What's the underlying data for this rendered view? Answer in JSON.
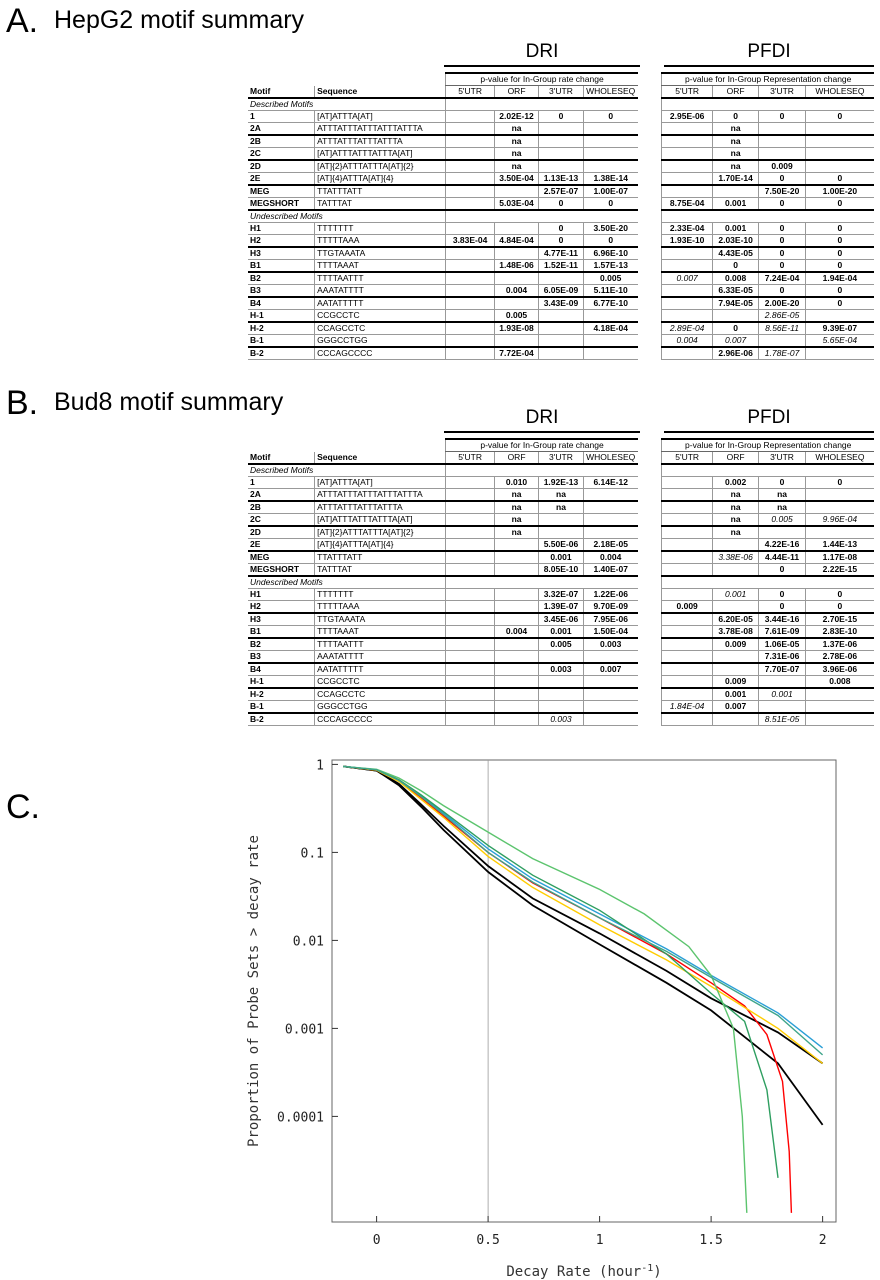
{
  "panelA": {
    "letter": "A.",
    "title": "HepG2 motif summary",
    "dri_title": "DRI",
    "pfdi_title": "PFDI",
    "dri_subtitle": "p-value for In-Group rate change",
    "pfdi_subtitle": "p-value for In-Group Representation change",
    "col_motif": "Motif",
    "col_sequence": "Sequence",
    "cols": [
      "5'UTR",
      "ORF",
      "3'UTR",
      "WHOLESEQ"
    ],
    "sections": [
      {
        "label": "Described Motifs",
        "rows": [
          {
            "m": "1",
            "s": "[AT]ATTTA[AT]",
            "dri": [
              "",
              "2.02E-12",
              "0",
              "0"
            ],
            "pfdi": [
              "2.95E-06",
              "0",
              "0",
              "0"
            ],
            "it": []
          },
          {
            "m": "2A",
            "s": "ATTTATTTATTTATTTATTTA",
            "dri": [
              "",
              "na",
              "",
              ""
            ],
            "pfdi": [
              "",
              "na",
              "",
              ""
            ],
            "it": []
          },
          {
            "m": "2B",
            "s": "ATTTATTTATTTATTTA",
            "dri": [
              "",
              "na",
              "",
              ""
            ],
            "pfdi": [
              "",
              "na",
              "",
              ""
            ],
            "it": []
          },
          {
            "m": "2C",
            "s": "[AT]ATTTATTTATTTA[AT]",
            "dri": [
              "",
              "na",
              "",
              ""
            ],
            "pfdi": [
              "",
              "na",
              "",
              ""
            ],
            "it": []
          },
          {
            "m": "2D",
            "s": "[AT]{2}ATTTATTTA[AT]{2}",
            "dri": [
              "",
              "na",
              "",
              ""
            ],
            "pfdi": [
              "",
              "na",
              "0.009",
              ""
            ],
            "it": []
          },
          {
            "m": "2E",
            "s": "[AT]{4}ATTTA[AT]{4}",
            "dri": [
              "",
              "3.50E-04",
              "1.13E-13",
              "1.38E-14"
            ],
            "pfdi": [
              "",
              "1.70E-14",
              "0",
              "0"
            ],
            "it": []
          },
          {
            "m": "MEG",
            "s": "TTATTTATT",
            "dri": [
              "",
              "",
              "2.57E-07",
              "1.00E-07"
            ],
            "pfdi": [
              "",
              "",
              "7.50E-20",
              "1.00E-20"
            ],
            "it": []
          },
          {
            "m": "MEGSHORT",
            "s": "TATTTAT",
            "dri": [
              "",
              "5.03E-04",
              "0",
              "0"
            ],
            "pfdi": [
              "8.75E-04",
              "0.001",
              "0",
              "0"
            ],
            "it": []
          }
        ]
      },
      {
        "label": "Undescribed Motifs",
        "rows": [
          {
            "m": "H1",
            "s": "TTTTTTT",
            "dri": [
              "",
              "",
              "0",
              "3.50E-20"
            ],
            "pfdi": [
              "2.33E-04",
              "0.001",
              "0",
              "0"
            ],
            "it": []
          },
          {
            "m": "H2",
            "s": "TTTTTAAA",
            "dri": [
              "3.83E-04",
              "4.84E-04",
              "0",
              "0"
            ],
            "pfdi": [
              "1.93E-10",
              "2.03E-10",
              "0",
              "0"
            ],
            "it": []
          },
          {
            "m": "H3",
            "s": "TTGTAAATA",
            "dri": [
              "",
              "",
              "4.77E-11",
              "6.96E-10"
            ],
            "pfdi": [
              "",
              "4.43E-05",
              "0",
              "0"
            ],
            "it": []
          },
          {
            "m": "B1",
            "s": "TTTTAAAT",
            "dri": [
              "",
              "1.48E-06",
              "1.52E-11",
              "1.57E-13"
            ],
            "pfdi": [
              "",
              "0",
              "0",
              "0"
            ],
            "it": []
          },
          {
            "m": "B2",
            "s": "TTTTAATTT",
            "dri": [
              "",
              "",
              "",
              "0.005"
            ],
            "pfdi": [
              "0.007",
              "0.008",
              "7.24E-04",
              "1.94E-04"
            ],
            "it": [
              "p0"
            ]
          },
          {
            "m": "B3",
            "s": "AAATATTTT",
            "dri": [
              "",
              "0.004",
              "6.05E-09",
              "5.11E-10"
            ],
            "pfdi": [
              "",
              "6.33E-05",
              "0",
              "0"
            ],
            "it": []
          },
          {
            "m": "B4",
            "s": "AATATTTTT",
            "dri": [
              "",
              "",
              "3.43E-09",
              "6.77E-10"
            ],
            "pfdi": [
              "",
              "7.94E-05",
              "2.00E-20",
              "0"
            ],
            "it": []
          },
          {
            "m": "H-1",
            "s": "CCGCCTC",
            "dri": [
              "",
              "0.005",
              "",
              ""
            ],
            "pfdi": [
              "",
              "",
              "2.86E-05",
              ""
            ],
            "it": [
              "p2"
            ]
          },
          {
            "m": "H-2",
            "s": "CCAGCCTC",
            "dri": [
              "",
              "1.93E-08",
              "",
              "4.18E-04"
            ],
            "pfdi": [
              "2.89E-04",
              "0",
              "8.56E-11",
              "9.39E-07"
            ],
            "it": [
              "p0",
              "p2"
            ]
          },
          {
            "m": "B-1",
            "s": "GGGCCTGG",
            "dri": [
              "",
              "",
              "",
              ""
            ],
            "pfdi": [
              "0.004",
              "0.007",
              "",
              "5.65E-04"
            ],
            "it": [
              "p0",
              "p1",
              "p3"
            ]
          },
          {
            "m": "B-2",
            "s": "CCCAGCCCC",
            "dri": [
              "",
              "7.72E-04",
              "",
              ""
            ],
            "pfdi": [
              "",
              "2.96E-06",
              "1.78E-07",
              ""
            ],
            "it": [
              "p2"
            ]
          }
        ]
      }
    ]
  },
  "panelB": {
    "letter": "B.",
    "title": "Bud8 motif summary",
    "dri_title": "DRI",
    "pfdi_title": "PFDI",
    "dri_subtitle": "p-value for In-Group rate change",
    "pfdi_subtitle": "p-value for In-Group Representation change",
    "col_motif": "Motif",
    "col_sequence": "Sequence",
    "cols": [
      "5'UTR",
      "ORF",
      "3'UTR",
      "WHOLESEQ"
    ],
    "sections": [
      {
        "label": "Described Motifs",
        "rows": [
          {
            "m": "1",
            "s": "[AT]ATTTA[AT]",
            "dri": [
              "",
              "0.010",
              "1.92E-13",
              "6.14E-12"
            ],
            "pfdi": [
              "",
              "0.002",
              "0",
              "0"
            ],
            "it": []
          },
          {
            "m": "2A",
            "s": "ATTTATTTATTTATTTATTTA",
            "dri": [
              "",
              "na",
              "na",
              ""
            ],
            "pfdi": [
              "",
              "na",
              "na",
              ""
            ],
            "it": []
          },
          {
            "m": "2B",
            "s": "ATTTATTTATTTATTTA",
            "dri": [
              "",
              "na",
              "na",
              ""
            ],
            "pfdi": [
              "",
              "na",
              "na",
              ""
            ],
            "it": []
          },
          {
            "m": "2C",
            "s": "[AT]ATTTATTTATTTA[AT]",
            "dri": [
              "",
              "na",
              "",
              ""
            ],
            "pfdi": [
              "",
              "na",
              "0.005",
              "9.96E-04"
            ],
            "it": [
              "p2",
              "p3"
            ]
          },
          {
            "m": "2D",
            "s": "[AT]{2}ATTTATTTA[AT]{2}",
            "dri": [
              "",
              "na",
              "",
              ""
            ],
            "pfdi": [
              "",
              "na",
              "",
              ""
            ],
            "it": []
          },
          {
            "m": "2E",
            "s": "[AT]{4}ATTTA[AT]{4}",
            "dri": [
              "",
              "",
              "5.50E-06",
              "2.18E-05"
            ],
            "pfdi": [
              "",
              "",
              "4.22E-16",
              "1.44E-13"
            ],
            "it": []
          },
          {
            "m": "MEG",
            "s": "TTATTTATT",
            "dri": [
              "",
              "",
              "0.001",
              "0.004"
            ],
            "pfdi": [
              "",
              "3.38E-06",
              "4.44E-11",
              "1.17E-08"
            ],
            "it": [
              "p1"
            ]
          },
          {
            "m": "MEGSHORT",
            "s": "TATTTAT",
            "dri": [
              "",
              "",
              "8.05E-10",
              "1.40E-07"
            ],
            "pfdi": [
              "",
              "",
              "0",
              "2.22E-15"
            ],
            "it": []
          }
        ]
      },
      {
        "label": "Undescribed Motifs",
        "rows": [
          {
            "m": "H1",
            "s": "TTTTTTT",
            "dri": [
              "",
              "",
              "3.32E-07",
              "1.22E-06"
            ],
            "pfdi": [
              "",
              "0.001",
              "0",
              "0"
            ],
            "it": [
              "p1"
            ]
          },
          {
            "m": "H2",
            "s": "TTTTTAAA",
            "dri": [
              "",
              "",
              "1.39E-07",
              "9.70E-09"
            ],
            "pfdi": [
              "0.009",
              "",
              "0",
              "0"
            ],
            "it": []
          },
          {
            "m": "H3",
            "s": "TTGTAAATA",
            "dri": [
              "",
              "",
              "3.45E-06",
              "7.95E-06"
            ],
            "pfdi": [
              "",
              "6.20E-05",
              "3.44E-16",
              "2.70E-15"
            ],
            "it": []
          },
          {
            "m": "B1",
            "s": "TTTTAAAT",
            "dri": [
              "",
              "0.004",
              "0.001",
              "1.50E-04"
            ],
            "pfdi": [
              "",
              "3.78E-08",
              "7.61E-09",
              "2.83E-10"
            ],
            "it": []
          },
          {
            "m": "B2",
            "s": "TTTTAATTT",
            "dri": [
              "",
              "",
              "0.005",
              "0.003"
            ],
            "pfdi": [
              "",
              "0.009",
              "1.06E-05",
              "1.37E-06"
            ],
            "it": []
          },
          {
            "m": "B3",
            "s": "AAATATTTT",
            "dri": [
              "",
              "",
              "",
              ""
            ],
            "pfdi": [
              "",
              "",
              "7.31E-06",
              "2.78E-06"
            ],
            "it": []
          },
          {
            "m": "B4",
            "s": "AATATTTTT",
            "dri": [
              "",
              "",
              "0.003",
              "0.007"
            ],
            "pfdi": [
              "",
              "",
              "7.70E-07",
              "3.96E-06"
            ],
            "it": []
          },
          {
            "m": "H-1",
            "s": "CCGCCTC",
            "dri": [
              "",
              "",
              "",
              ""
            ],
            "pfdi": [
              "",
              "0.009",
              "",
              "0.008"
            ],
            "it": []
          },
          {
            "m": "H-2",
            "s": "CCAGCCTC",
            "dri": [
              "",
              "",
              "",
              ""
            ],
            "pfdi": [
              "",
              "0.001",
              "0.001",
              ""
            ],
            "it": [
              "p2"
            ]
          },
          {
            "m": "B-1",
            "s": "GGGCCTGG",
            "dri": [
              "",
              "",
              "",
              ""
            ],
            "pfdi": [
              "1.84E-04",
              "0.007",
              "",
              ""
            ],
            "it": [
              "p0"
            ]
          },
          {
            "m": "B-2",
            "s": "CCCAGCCCC",
            "dri": [
              "",
              "",
              "0.003",
              ""
            ],
            "pfdi": [
              "",
              "",
              "8.51E-05",
              ""
            ],
            "it": [
              "d2",
              "p2"
            ]
          }
        ]
      }
    ]
  },
  "panelC": {
    "letter": "C.",
    "chart_data": {
      "type": "line",
      "title": "",
      "xlabel": "Decay Rate (hour",
      "xlabel_sup": "-1",
      "xlabel_end": ")",
      "ylabel": "Proportion of Probe Sets > decay rate",
      "xlim": [
        -0.2,
        2.06
      ],
      "ylim_log10": [
        -5.2,
        0.05
      ],
      "y_scale": "log",
      "x_ticks": [
        0,
        0.5,
        1,
        1.5,
        2
      ],
      "x_tick_labels": [
        "0",
        "0.5",
        "1",
        "1.5",
        "2"
      ],
      "y_ticks": [
        1,
        0.1,
        0.01,
        0.001,
        0.0001
      ],
      "y_tick_labels": [
        "1",
        "0.1",
        "0.01",
        "0.001",
        "0.0001"
      ],
      "vline_x": 0.5,
      "series": [
        {
          "color": "#000000",
          "x": [
            -0.15,
            0,
            0.1,
            0.2,
            0.3,
            0.5,
            0.7,
            1.0,
            1.3,
            1.5,
            1.8,
            2.0
          ],
          "y": [
            0.95,
            0.85,
            0.6,
            0.35,
            0.2,
            0.07,
            0.03,
            0.012,
            0.0045,
            0.0022,
            0.0009,
            0.0004
          ]
        },
        {
          "color": "#000000",
          "x": [
            -0.15,
            0,
            0.1,
            0.2,
            0.3,
            0.5,
            0.7,
            1.0,
            1.3,
            1.5,
            1.8,
            2.0
          ],
          "y": [
            0.95,
            0.85,
            0.58,
            0.33,
            0.18,
            0.06,
            0.025,
            0.009,
            0.0033,
            0.0016,
            0.0004,
            8e-05
          ]
        },
        {
          "color": "#ff0000",
          "x": [
            -0.15,
            0,
            0.1,
            0.2,
            0.3,
            0.5,
            0.7,
            1.0,
            1.3,
            1.5,
            1.65,
            1.75,
            1.82,
            1.85,
            1.86
          ],
          "y": [
            0.95,
            0.86,
            0.65,
            0.42,
            0.26,
            0.1,
            0.045,
            0.018,
            0.007,
            0.0033,
            0.0018,
            0.00085,
            0.00025,
            4e-05,
            8e-06
          ]
        },
        {
          "color": "#ffcc00",
          "x": [
            -0.15,
            0,
            0.1,
            0.2,
            0.3,
            0.5,
            0.7,
            1.0,
            1.3,
            1.5,
            1.8,
            2.0
          ],
          "y": [
            0.95,
            0.86,
            0.64,
            0.4,
            0.25,
            0.09,
            0.04,
            0.015,
            0.006,
            0.003,
            0.001,
            0.0004
          ]
        },
        {
          "color": "#2a9fd6",
          "x": [
            -0.15,
            0,
            0.1,
            0.2,
            0.3,
            0.5,
            0.7,
            1.0,
            1.3,
            1.5,
            1.8,
            2.0
          ],
          "y": [
            0.95,
            0.87,
            0.66,
            0.44,
            0.28,
            0.11,
            0.05,
            0.02,
            0.008,
            0.004,
            0.0015,
            0.0006
          ]
        },
        {
          "color": "#2e9e60",
          "x": [
            -0.15,
            0,
            0.1,
            0.2,
            0.3,
            0.5,
            0.7,
            1.0,
            1.3,
            1.5,
            1.65,
            1.75,
            1.8
          ],
          "y": [
            0.95,
            0.87,
            0.67,
            0.45,
            0.29,
            0.12,
            0.055,
            0.022,
            0.007,
            0.0025,
            0.0012,
            0.0002,
            2e-05
          ]
        },
        {
          "color": "#5cc46e",
          "x": [
            -0.15,
            0,
            0.1,
            0.2,
            0.3,
            0.5,
            0.7,
            1.0,
            1.2,
            1.4,
            1.5,
            1.6,
            1.64,
            1.66
          ],
          "y": [
            0.95,
            0.88,
            0.7,
            0.5,
            0.34,
            0.17,
            0.085,
            0.038,
            0.02,
            0.0085,
            0.004,
            0.001,
            0.0001,
            8e-06
          ]
        },
        {
          "color": "#3fa58a",
          "x": [
            -0.15,
            0,
            0.1,
            0.2,
            0.3,
            0.5,
            0.7,
            1.0,
            1.3,
            1.5,
            1.8,
            2.0
          ],
          "y": [
            0.95,
            0.87,
            0.66,
            0.43,
            0.27,
            0.1,
            0.046,
            0.018,
            0.0075,
            0.0038,
            0.0014,
            0.0005
          ]
        }
      ]
    }
  }
}
